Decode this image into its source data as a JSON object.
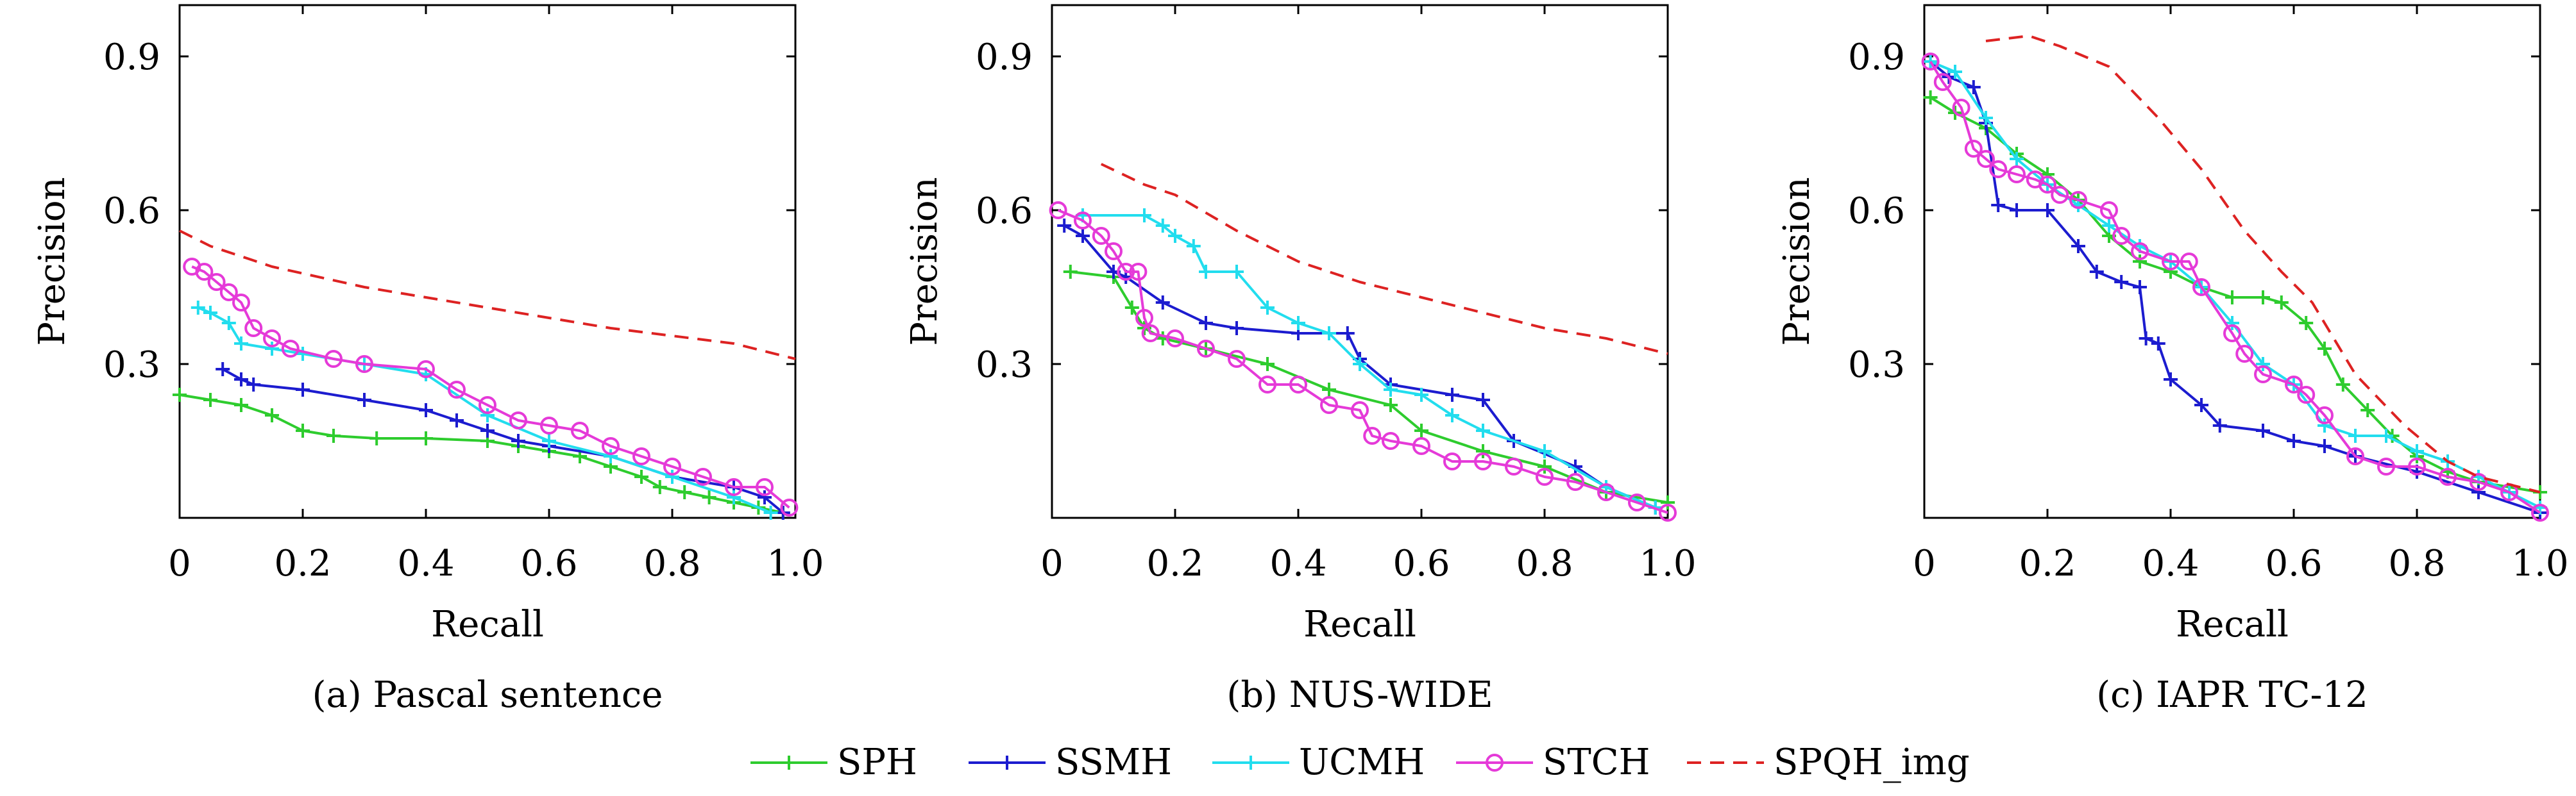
{
  "figure": {
    "legend": [
      "SPH",
      "SSMH",
      "UCMH",
      "STCH",
      "SPQH_img"
    ]
  },
  "chart_data": [
    {
      "type": "line",
      "caption": "(a) Pascal sentence",
      "xlabel": "Recall",
      "ylabel": "Precision",
      "xlim": [
        0,
        1.0
      ],
      "ylim": [
        0,
        1.0
      ],
      "xticks": [
        0,
        0.2,
        0.4,
        0.6,
        0.8,
        1.0
      ],
      "xtick_labels": [
        "0",
        "0.2",
        "0.4",
        "0.6",
        "0.8",
        "1.0"
      ],
      "yticks": [
        0.3,
        0.6,
        0.9
      ],
      "ytick_labels": [
        "0.3",
        "0.6",
        "0.9"
      ],
      "grid": false,
      "series": [
        {
          "name": "SPH",
          "color": "#2ecc2e",
          "marker": "plus",
          "dash": "solid",
          "x": [
            0.0,
            0.05,
            0.1,
            0.15,
            0.2,
            0.25,
            0.32,
            0.4,
            0.5,
            0.55,
            0.6,
            0.65,
            0.7,
            0.75,
            0.78,
            0.82,
            0.86,
            0.9,
            0.94,
            0.98
          ],
          "y": [
            0.24,
            0.23,
            0.22,
            0.2,
            0.17,
            0.16,
            0.155,
            0.155,
            0.15,
            0.14,
            0.13,
            0.12,
            0.1,
            0.08,
            0.06,
            0.05,
            0.04,
            0.03,
            0.02,
            0.01
          ]
        },
        {
          "name": "SSMH",
          "color": "#1c1ccf",
          "marker": "plus",
          "dash": "solid",
          "x": [
            0.07,
            0.1,
            0.12,
            0.2,
            0.3,
            0.4,
            0.45,
            0.5,
            0.55,
            0.6,
            0.7,
            0.8,
            0.9,
            0.95,
            0.98
          ],
          "y": [
            0.29,
            0.27,
            0.26,
            0.25,
            0.23,
            0.21,
            0.19,
            0.17,
            0.15,
            0.14,
            0.12,
            0.08,
            0.06,
            0.04,
            0.01
          ]
        },
        {
          "name": "UCMH",
          "color": "#22ddee",
          "marker": "plus",
          "dash": "solid",
          "x": [
            0.03,
            0.05,
            0.08,
            0.1,
            0.15,
            0.2,
            0.3,
            0.4,
            0.5,
            0.6,
            0.7,
            0.8,
            0.9,
            0.96
          ],
          "y": [
            0.41,
            0.4,
            0.38,
            0.34,
            0.33,
            0.32,
            0.3,
            0.28,
            0.2,
            0.15,
            0.12,
            0.08,
            0.04,
            0.01
          ]
        },
        {
          "name": "STCH",
          "color": "#e53ad8",
          "marker": "circle",
          "dash": "solid",
          "x": [
            0.02,
            0.04,
            0.06,
            0.08,
            0.1,
            0.12,
            0.15,
            0.18,
            0.25,
            0.3,
            0.4,
            0.45,
            0.5,
            0.55,
            0.6,
            0.65,
            0.7,
            0.75,
            0.8,
            0.85,
            0.9,
            0.95,
            0.99
          ],
          "y": [
            0.49,
            0.48,
            0.46,
            0.44,
            0.42,
            0.37,
            0.35,
            0.33,
            0.31,
            0.3,
            0.29,
            0.25,
            0.22,
            0.19,
            0.18,
            0.17,
            0.14,
            0.12,
            0.1,
            0.08,
            0.06,
            0.06,
            0.02
          ]
        },
        {
          "name": "SPQH_img",
          "color": "#dd2222",
          "marker": "none",
          "dash": "dashed",
          "x": [
            0.0,
            0.05,
            0.15,
            0.3,
            0.5,
            0.7,
            0.9,
            1.0
          ],
          "y": [
            0.56,
            0.53,
            0.49,
            0.45,
            0.41,
            0.37,
            0.34,
            0.31
          ]
        }
      ]
    },
    {
      "type": "line",
      "caption": "(b) NUS-WIDE",
      "xlabel": "Recall",
      "ylabel": "Precision",
      "xlim": [
        0,
        1.0
      ],
      "ylim": [
        0,
        1.0
      ],
      "xticks": [
        0,
        0.2,
        0.4,
        0.6,
        0.8,
        1.0
      ],
      "xtick_labels": [
        "0",
        "0.2",
        "0.4",
        "0.6",
        "0.8",
        "1.0"
      ],
      "yticks": [
        0.3,
        0.6,
        0.9
      ],
      "ytick_labels": [
        "0.3",
        "0.6",
        "0.9"
      ],
      "grid": false,
      "series": [
        {
          "name": "SPH",
          "color": "#2ecc2e",
          "marker": "plus",
          "dash": "solid",
          "x": [
            0.03,
            0.1,
            0.13,
            0.15,
            0.18,
            0.25,
            0.35,
            0.45,
            0.55,
            0.6,
            0.7,
            0.8,
            0.9,
            1.0
          ],
          "y": [
            0.48,
            0.47,
            0.41,
            0.37,
            0.35,
            0.33,
            0.3,
            0.25,
            0.22,
            0.17,
            0.13,
            0.1,
            0.05,
            0.03
          ]
        },
        {
          "name": "SSMH",
          "color": "#1c1ccf",
          "marker": "plus",
          "dash": "solid",
          "x": [
            0.02,
            0.05,
            0.1,
            0.12,
            0.18,
            0.25,
            0.3,
            0.4,
            0.48,
            0.5,
            0.55,
            0.65,
            0.7,
            0.75,
            0.85,
            0.9,
            0.98
          ],
          "y": [
            0.57,
            0.55,
            0.48,
            0.47,
            0.42,
            0.38,
            0.37,
            0.36,
            0.36,
            0.31,
            0.26,
            0.24,
            0.23,
            0.15,
            0.1,
            0.06,
            0.02
          ]
        },
        {
          "name": "UCMH",
          "color": "#22ddee",
          "marker": "plus",
          "dash": "solid",
          "x": [
            0.05,
            0.15,
            0.18,
            0.2,
            0.23,
            0.25,
            0.3,
            0.35,
            0.4,
            0.45,
            0.5,
            0.55,
            0.6,
            0.65,
            0.7,
            0.8,
            0.9,
            0.98
          ],
          "y": [
            0.59,
            0.59,
            0.57,
            0.55,
            0.53,
            0.48,
            0.48,
            0.41,
            0.38,
            0.36,
            0.3,
            0.25,
            0.24,
            0.2,
            0.17,
            0.13,
            0.06,
            0.02
          ]
        },
        {
          "name": "STCH",
          "color": "#e53ad8",
          "marker": "circle",
          "dash": "solid",
          "x": [
            0.01,
            0.05,
            0.08,
            0.1,
            0.12,
            0.14,
            0.15,
            0.16,
            0.2,
            0.25,
            0.3,
            0.35,
            0.4,
            0.45,
            0.5,
            0.52,
            0.55,
            0.6,
            0.65,
            0.7,
            0.75,
            0.8,
            0.85,
            0.9,
            0.95,
            1.0
          ],
          "y": [
            0.6,
            0.58,
            0.55,
            0.52,
            0.48,
            0.48,
            0.39,
            0.36,
            0.35,
            0.33,
            0.31,
            0.26,
            0.26,
            0.22,
            0.21,
            0.16,
            0.15,
            0.14,
            0.11,
            0.11,
            0.1,
            0.08,
            0.07,
            0.05,
            0.03,
            0.01
          ]
        },
        {
          "name": "SPQH_img",
          "color": "#dd2222",
          "marker": "none",
          "dash": "dashed",
          "x": [
            0.08,
            0.15,
            0.2,
            0.3,
            0.4,
            0.5,
            0.6,
            0.7,
            0.8,
            0.9,
            1.0
          ],
          "y": [
            0.69,
            0.65,
            0.63,
            0.56,
            0.5,
            0.46,
            0.43,
            0.4,
            0.37,
            0.35,
            0.32
          ]
        }
      ]
    },
    {
      "type": "line",
      "caption": "(c) IAPR TC-12",
      "xlabel": "Recall",
      "ylabel": "Precision",
      "xlim": [
        0,
        1.0
      ],
      "ylim": [
        0,
        1.0
      ],
      "xticks": [
        0,
        0.2,
        0.4,
        0.6,
        0.8,
        1.0
      ],
      "xtick_labels": [
        "0",
        "0.2",
        "0.4",
        "0.6",
        "0.8",
        "1.0"
      ],
      "yticks": [
        0.3,
        0.6,
        0.9
      ],
      "ytick_labels": [
        "0.3",
        "0.6",
        "0.9"
      ],
      "grid": false,
      "series": [
        {
          "name": "SPH",
          "color": "#2ecc2e",
          "marker": "plus",
          "dash": "solid",
          "x": [
            0.01,
            0.05,
            0.1,
            0.15,
            0.2,
            0.25,
            0.3,
            0.35,
            0.4,
            0.45,
            0.5,
            0.55,
            0.58,
            0.62,
            0.65,
            0.68,
            0.72,
            0.76,
            0.8,
            0.85,
            0.9,
            1.0
          ],
          "y": [
            0.82,
            0.79,
            0.76,
            0.71,
            0.67,
            0.62,
            0.55,
            0.5,
            0.48,
            0.45,
            0.43,
            0.43,
            0.42,
            0.38,
            0.33,
            0.26,
            0.21,
            0.16,
            0.12,
            0.09,
            0.07,
            0.05
          ]
        },
        {
          "name": "SSMH",
          "color": "#1c1ccf",
          "marker": "plus",
          "dash": "solid",
          "x": [
            0.01,
            0.04,
            0.08,
            0.1,
            0.12,
            0.15,
            0.2,
            0.25,
            0.28,
            0.32,
            0.35,
            0.36,
            0.38,
            0.4,
            0.45,
            0.48,
            0.55,
            0.6,
            0.65,
            0.7,
            0.8,
            0.9,
            1.0
          ],
          "y": [
            0.89,
            0.86,
            0.84,
            0.77,
            0.61,
            0.6,
            0.6,
            0.53,
            0.48,
            0.46,
            0.45,
            0.35,
            0.34,
            0.27,
            0.22,
            0.18,
            0.17,
            0.15,
            0.14,
            0.12,
            0.09,
            0.05,
            0.01
          ]
        },
        {
          "name": "UCMH",
          "color": "#22ddee",
          "marker": "plus",
          "dash": "solid",
          "x": [
            0.01,
            0.05,
            0.1,
            0.15,
            0.2,
            0.25,
            0.3,
            0.35,
            0.4,
            0.45,
            0.5,
            0.55,
            0.6,
            0.65,
            0.7,
            0.75,
            0.8,
            0.85,
            0.9,
            0.95,
            1.0
          ],
          "y": [
            0.89,
            0.87,
            0.78,
            0.7,
            0.65,
            0.61,
            0.57,
            0.53,
            0.5,
            0.45,
            0.38,
            0.3,
            0.26,
            0.18,
            0.16,
            0.16,
            0.13,
            0.11,
            0.08,
            0.05,
            0.02
          ]
        },
        {
          "name": "STCH",
          "color": "#e53ad8",
          "marker": "circle",
          "dash": "solid",
          "x": [
            0.01,
            0.03,
            0.06,
            0.08,
            0.1,
            0.12,
            0.15,
            0.18,
            0.2,
            0.22,
            0.25,
            0.3,
            0.32,
            0.35,
            0.4,
            0.43,
            0.45,
            0.5,
            0.52,
            0.55,
            0.6,
            0.62,
            0.65,
            0.7,
            0.75,
            0.8,
            0.85,
            0.9,
            0.95,
            1.0
          ],
          "y": [
            0.89,
            0.85,
            0.8,
            0.72,
            0.7,
            0.68,
            0.67,
            0.66,
            0.65,
            0.63,
            0.62,
            0.6,
            0.55,
            0.52,
            0.5,
            0.5,
            0.45,
            0.36,
            0.32,
            0.28,
            0.26,
            0.24,
            0.2,
            0.12,
            0.1,
            0.1,
            0.08,
            0.07,
            0.05,
            0.01
          ]
        },
        {
          "name": "SPQH_img",
          "color": "#dd2222",
          "marker": "none",
          "dash": "dashed",
          "x": [
            0.1,
            0.17,
            0.22,
            0.3,
            0.38,
            0.45,
            0.52,
            0.58,
            0.63,
            0.7,
            0.78,
            0.85,
            0.9,
            1.0
          ],
          "y": [
            0.93,
            0.94,
            0.92,
            0.88,
            0.78,
            0.68,
            0.56,
            0.48,
            0.42,
            0.28,
            0.18,
            0.11,
            0.08,
            0.05
          ]
        }
      ]
    }
  ]
}
